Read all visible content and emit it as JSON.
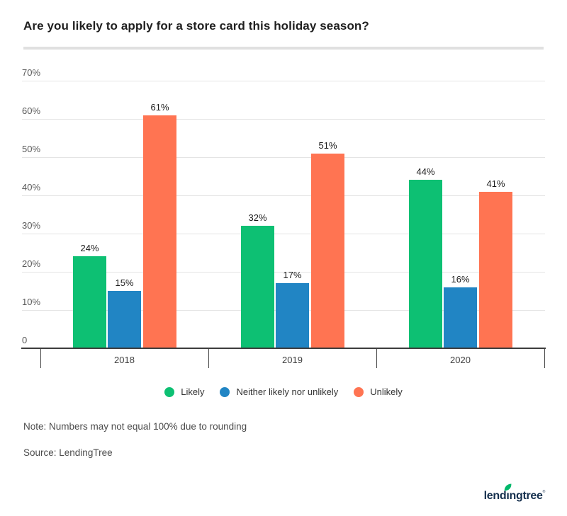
{
  "header": {
    "title": "Are you likely to apply for a store card this holiday season?"
  },
  "chart_data": {
    "type": "bar",
    "title": "Are you likely to apply for a store card this holiday season?",
    "categories": [
      "2018",
      "2019",
      "2020"
    ],
    "series": [
      {
        "name": "Likely",
        "color": "#0dc073",
        "values": [
          24,
          32,
          44
        ]
      },
      {
        "name": "Neither likely nor unlikely",
        "color": "#2185c4",
        "values": [
          15,
          17,
          16
        ]
      },
      {
        "name": "Unlikely",
        "color": "#ff7452",
        "values": [
          61,
          51,
          41
        ]
      }
    ],
    "value_suffix": "%",
    "ylim": [
      0,
      70
    ],
    "yticks": [
      {
        "value": 0,
        "label": "0"
      },
      {
        "value": 10,
        "label": "10%"
      },
      {
        "value": 20,
        "label": "20%"
      },
      {
        "value": 30,
        "label": "30%"
      },
      {
        "value": 40,
        "label": "40%"
      },
      {
        "value": 50,
        "label": "50%"
      },
      {
        "value": 60,
        "label": "60%"
      },
      {
        "value": 70,
        "label": "70%"
      }
    ],
    "grid": true,
    "legend_position": "bottom"
  },
  "footer": {
    "note": "Note: Numbers may not equal 100% due to rounding",
    "source": "Source: LendingTree",
    "logo_text": "lendingtree",
    "logo_mark": "®",
    "logo_text_color": "#16304e",
    "logo_leaf_color": "#00b86b"
  }
}
